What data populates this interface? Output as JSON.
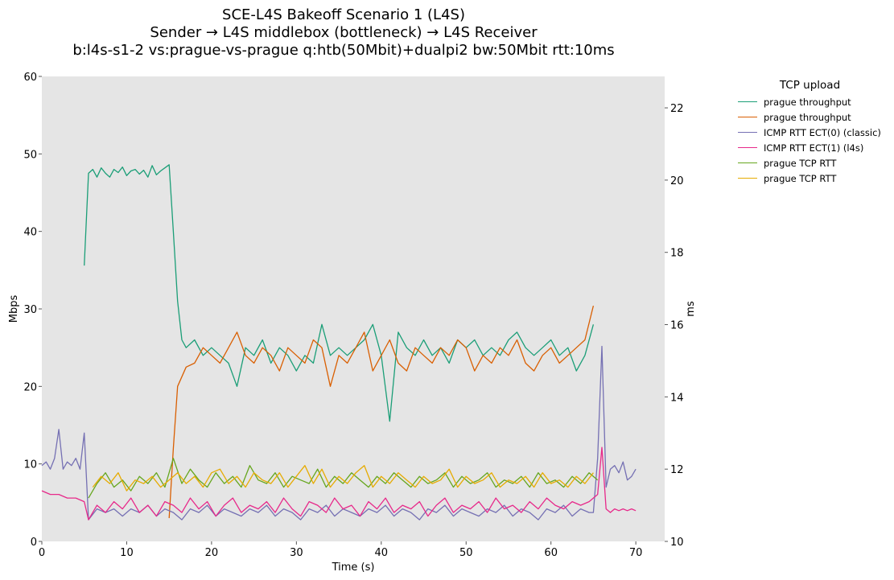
{
  "chart_data": {
    "type": "line",
    "title": [
      "SCE-L4S Bakeoff Scenario 1 (L4S)",
      "Sender → L4S middlebox (bottleneck) → L4S Receiver",
      "b:l4s-s1-2 vs:prague-vs-prague q:htb(50Mbit)+dualpi2 bw:50Mbit rtt:10ms"
    ],
    "xlabel": "Time (s)",
    "ylabel": "Mbps",
    "y2label": "ms",
    "xlim": [
      0,
      73.4
    ],
    "ylim": [
      0,
      60
    ],
    "y2lim": [
      10,
      22.87
    ],
    "xticks": [
      "0",
      "10",
      "20",
      "30",
      "40",
      "50",
      "60",
      "70"
    ],
    "yticks": [
      "0",
      "10",
      "20",
      "30",
      "40",
      "50",
      "60"
    ],
    "y2ticks": [
      "10",
      "12",
      "14",
      "16",
      "18",
      "20",
      "22"
    ],
    "grid": false,
    "legend": {
      "title": "TCP upload",
      "placement": "outside-right"
    },
    "series": [
      {
        "name": "prague throughput",
        "axis": "left",
        "color": "#1b9e77",
        "segments": [
          {
            "x0": 5,
            "dx": 0.5,
            "y": [
              35.6,
              47.5,
              48,
              47,
              48.2,
              47.5,
              47,
              48,
              47.6,
              48.3,
              47.2,
              47.8,
              48,
              47.4,
              47.9,
              47,
              48.5,
              47.3,
              47.8,
              48.2,
              48.6,
              40
            ]
          },
          {
            "x0": 16,
            "dx": 0.5,
            "y": [
              31,
              26
            ]
          },
          {
            "x0": 17,
            "dx": 1,
            "y": [
              25,
              26,
              24,
              25,
              24,
              23,
              20,
              25,
              24,
              26,
              23,
              25,
              24,
              22,
              24,
              23,
              28,
              24,
              25,
              24,
              25,
              26,
              28,
              24,
              15.5,
              27,
              25,
              24,
              26,
              24,
              25,
              23,
              26,
              25,
              26,
              24,
              25,
              24,
              26,
              27,
              25,
              24,
              25,
              26,
              24,
              25,
              22,
              24,
              28
            ]
          }
        ]
      },
      {
        "name": "prague throughput",
        "axis": "left",
        "color": "#d95f02",
        "segments": [
          {
            "x0": 15,
            "dx": 0.5,
            "y": [
              3,
              12
            ]
          },
          {
            "x0": 16,
            "dx": 1,
            "y": [
              20,
              22.5,
              23,
              25,
              24,
              23,
              25,
              27,
              24,
              23,
              25,
              24,
              22,
              25,
              24,
              23,
              26,
              25,
              20,
              24,
              23,
              25,
              27,
              22,
              24,
              26,
              23,
              22,
              25,
              24,
              23,
              25,
              24,
              26,
              25,
              22,
              24,
              23,
              25,
              24,
              26,
              23,
              22,
              24,
              25,
              23,
              24,
              25,
              26,
              30.4
            ]
          }
        ]
      },
      {
        "name": "ICMP RTT ECT(0) (classic)",
        "axis": "right",
        "color": "#7570b3",
        "segments": [
          {
            "x0": 0,
            "dx": 0.5,
            "y": [
              12.1,
              12.2,
              12.0,
              12.3,
              13.1,
              12.0,
              12.2,
              12.1,
              12.3,
              12.0,
              13.0
            ]
          },
          {
            "x0": 5.5,
            "dx": 1,
            "y": [
              10.6,
              10.9,
              10.8,
              10.9,
              10.7,
              10.9,
              10.8,
              11.0,
              10.7,
              10.9,
              10.8,
              10.6,
              10.9,
              10.8,
              11.0,
              10.7,
              10.9,
              10.8,
              10.7,
              10.9,
              10.8,
              11.0,
              10.7,
              10.9,
              10.8,
              10.6,
              10.9,
              10.8,
              11.0,
              10.7,
              10.9,
              10.8,
              10.7,
              10.9,
              10.8,
              11.0,
              10.7,
              10.9,
              10.8,
              10.6,
              10.9,
              10.8,
              11.0,
              10.7,
              10.9,
              10.8,
              10.7,
              10.9,
              10.8,
              11.0,
              10.7,
              10.9,
              10.8,
              10.6,
              10.9,
              10.8,
              11.0,
              10.7,
              10.9,
              10.8
            ]
          },
          {
            "x0": 65,
            "dx": 0.5,
            "y": [
              10.8,
              12.3,
              15.4,
              11.5,
              12.0,
              12.1,
              11.9,
              12.2,
              11.7,
              11.8,
              12.0
            ]
          }
        ]
      },
      {
        "name": "ICMP RTT ECT(1) (l4s)",
        "axis": "right",
        "color": "#e7298a",
        "segments": [
          {
            "x0": 0,
            "dx": 1,
            "y": [
              11.4,
              11.3,
              11.3,
              11.2,
              11.2,
              11.1
            ]
          },
          {
            "x0": 5.5,
            "dx": 1,
            "y": [
              10.6,
              11.0,
              10.8,
              11.1,
              10.9,
              11.2,
              10.8,
              11.0,
              10.7,
              11.1,
              11.0,
              10.8,
              11.2,
              10.9,
              11.1,
              10.7,
              11.0,
              11.2,
              10.8,
              11.0,
              10.9,
              11.1,
              10.8,
              11.2,
              10.9,
              10.7,
              11.1,
              11.0,
              10.8,
              11.2,
              10.9,
              11.0,
              10.7,
              11.1,
              10.9,
              11.2,
              10.8,
              11.0,
              10.9,
              11.1,
              10.7,
              11.0,
              11.2,
              10.8,
              11.0,
              10.9,
              11.1,
              10.8,
              11.2,
              10.9,
              11.0,
              10.8,
              11.1,
              10.9,
              11.2,
              11.0,
              10.9,
              11.1,
              11.0,
              11.1
            ]
          },
          {
            "x0": 65.5,
            "dx": 0.5,
            "y": [
              11.3,
              12.6,
              10.9,
              10.8,
              10.9,
              10.85,
              10.9,
              10.85,
              10.9,
              10.85
            ]
          }
        ]
      },
      {
        "name": "prague TCP RTT",
        "axis": "right",
        "color": "#66a61e",
        "segments": [
          {
            "x0": 5.5,
            "dx": 1,
            "y": [
              11.2,
              11.6,
              11.9,
              11.5,
              11.7,
              11.4,
              11.8,
              11.6,
              11.9,
              11.5,
              12.3,
              11.6,
              12.0,
              11.7,
              11.5,
              11.9,
              11.6,
              11.8,
              11.5,
              12.1,
              11.7,
              11.6,
              11.9,
              11.5,
              11.8,
              11.7,
              11.6,
              12.0,
              11.5,
              11.8,
              11.6,
              11.9,
              11.7,
              11.5,
              11.8,
              11.6,
              11.9,
              11.7,
              11.5,
              11.8,
              11.6,
              11.7,
              11.9,
              11.5,
              11.8,
              11.6,
              11.7,
              11.9,
              11.5,
              11.7,
              11.6,
              11.8,
              11.5,
              11.9,
              11.6,
              11.7,
              11.5,
              11.8,
              11.6,
              11.9,
              11.7
            ]
          }
        ]
      },
      {
        "name": "prague TCP RTT",
        "axis": "right",
        "color": "#e6ab02",
        "segments": [
          {
            "x0": 6,
            "dx": 1,
            "y": [
              11.5,
              11.8,
              11.6,
              11.9,
              11.4,
              11.7,
              11.6,
              11.8,
              11.5,
              11.7,
              11.9,
              11.6,
              11.8,
              11.5,
              11.9,
              12.0,
              11.6,
              11.8,
              11.5,
              11.9,
              11.7,
              11.6,
              11.9,
              11.5,
              11.8,
              12.1,
              11.6,
              12.0,
              11.5,
              11.8,
              11.6,
              11.9,
              12.1,
              11.5,
              11.8,
              11.6,
              11.9,
              11.7,
              11.5,
              11.8,
              11.6,
              11.7,
              12.0,
              11.5,
              11.8,
              11.6,
              11.7,
              11.9,
              11.5,
              11.7,
              11.6,
              11.8,
              11.5,
              11.9,
              11.6,
              11.7,
              11.5,
              11.8,
              11.6,
              11.9
            ]
          }
        ]
      }
    ]
  }
}
